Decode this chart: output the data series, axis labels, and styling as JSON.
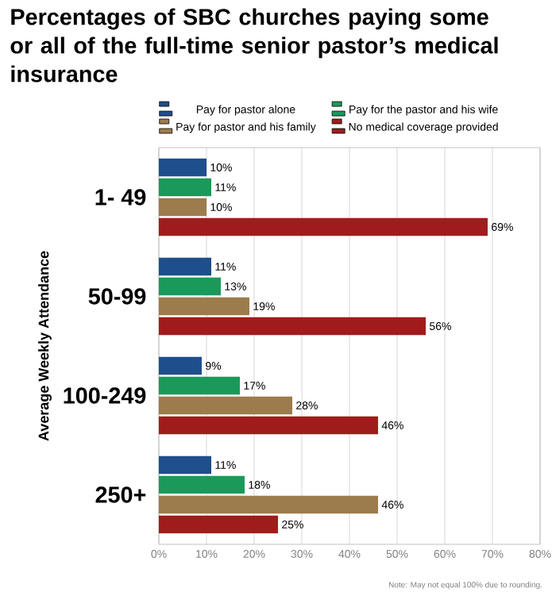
{
  "chart_data": {
    "type": "bar",
    "orientation": "horizontal",
    "title": "Percentages of SBC churches paying some or all of the full-time senior pastor’s medical insurance",
    "ylabel": "Average Weekly Attendance",
    "categories": [
      "1- 49",
      "50-99",
      "100-249",
      "250+"
    ],
    "series": [
      {
        "name": "Pay for pastor alone",
        "color": "#1f4e8c",
        "values": [
          10,
          11,
          9,
          11
        ],
        "value_labels": [
          "10%",
          "11%",
          "9%",
          "11%"
        ]
      },
      {
        "name": "Pay for the pastor and his wife",
        "color": "#1a9a5a",
        "values": [
          11,
          13,
          17,
          18
        ],
        "value_labels": [
          "11%",
          "13%",
          "17%",
          "18%"
        ]
      },
      {
        "name": "Pay for pastor and his family",
        "color": "#9c7c4c",
        "values": [
          10,
          19,
          28,
          46
        ],
        "value_labels": [
          "10%",
          "19%",
          "28%",
          "46%"
        ]
      },
      {
        "name": "No medical coverage provided",
        "color": "#a01c1c",
        "values": [
          69,
          56,
          46,
          25
        ],
        "value_labels": [
          "69%",
          "56%",
          "46%",
          "25%"
        ]
      }
    ],
    "xlim": [
      0,
      80
    ],
    "xticks": [
      {
        "value": 0,
        "label": "0%"
      },
      {
        "value": 10,
        "label": "10%"
      },
      {
        "value": 20,
        "label": "20%"
      },
      {
        "value": 30,
        "label": "30%"
      },
      {
        "value": 40,
        "label": "40%"
      },
      {
        "value": 50,
        "label": "50%"
      },
      {
        "value": 60,
        "label": "60%"
      },
      {
        "value": 70,
        "label": "70%"
      },
      {
        "value": 80,
        "label": "80%"
      }
    ],
    "grid": "x",
    "legend": "top",
    "annotations": [
      "Note: May not equal 100% due to rounding."
    ]
  }
}
